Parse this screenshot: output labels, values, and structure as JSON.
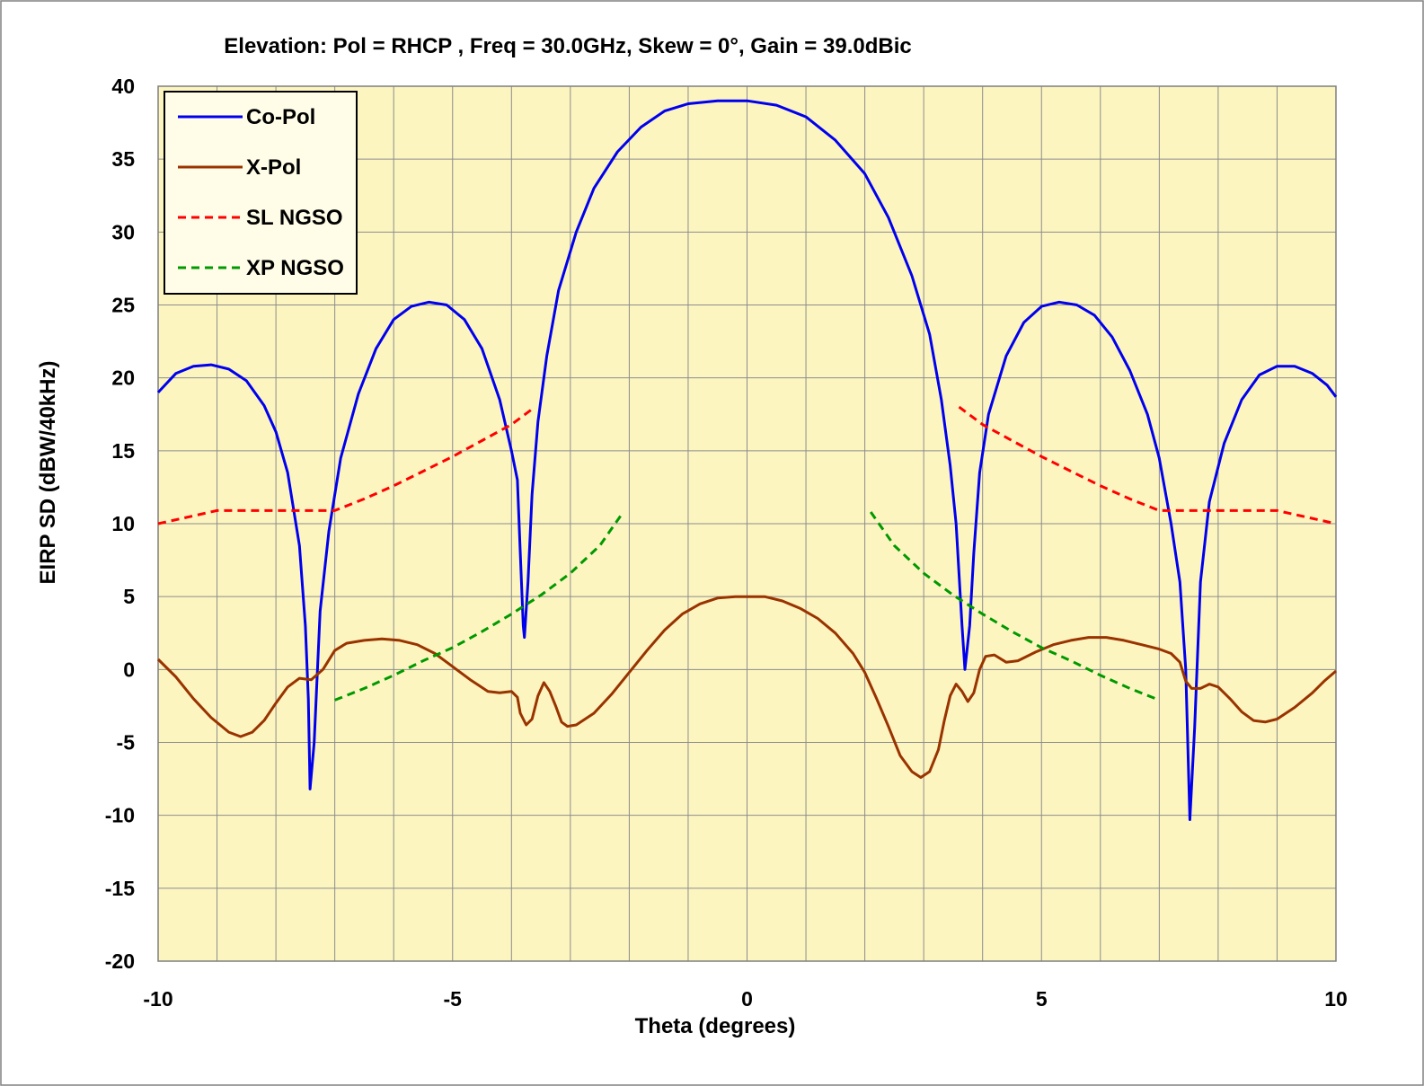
{
  "chart_data": {
    "type": "line",
    "title": "Elevation: Pol =  RHCP , Freq = 30.0GHz, Skew = 0°, Gain = 39.0dBic",
    "xlabel": "Theta (degrees)",
    "ylabel": "EIRP SD (dBW/40kHz)",
    "xlim": [
      -10,
      10
    ],
    "ylim": [
      -20,
      40
    ],
    "x_ticks": [
      -10,
      -5,
      0,
      5,
      10
    ],
    "x_tick_labels": [
      "-10",
      "-5",
      "0",
      "5",
      "10"
    ],
    "x_minor_step": 1,
    "y_ticks": [
      40,
      35,
      30,
      25,
      20,
      15,
      10,
      5,
      0,
      -5,
      -10,
      -15,
      -20
    ],
    "y_tick_labels": [
      "40",
      "35",
      "30",
      "25",
      "20",
      "15",
      "10",
      "5",
      "0",
      "-5",
      "-10",
      "-15",
      "-20"
    ],
    "grid": true,
    "legend_position": "top-left",
    "plot_background": "#fdf5c0",
    "series": [
      {
        "name": "Co-Pol",
        "color": "#0000ee",
        "style": "solid",
        "points": [
          [
            -10,
            19
          ],
          [
            -9.7,
            20.3
          ],
          [
            -9.4,
            20.8
          ],
          [
            -9.1,
            20.9
          ],
          [
            -8.8,
            20.6
          ],
          [
            -8.5,
            19.8
          ],
          [
            -8.2,
            18.1
          ],
          [
            -8.0,
            16.3
          ],
          [
            -7.8,
            13.5
          ],
          [
            -7.6,
            8.5
          ],
          [
            -7.5,
            3
          ],
          [
            -7.45,
            -2
          ],
          [
            -7.42,
            -8.2
          ],
          [
            -7.35,
            -5
          ],
          [
            -7.25,
            4
          ],
          [
            -7.1,
            9.5
          ],
          [
            -6.9,
            14.5
          ],
          [
            -6.6,
            18.9
          ],
          [
            -6.3,
            22
          ],
          [
            -6.0,
            24
          ],
          [
            -5.7,
            24.9
          ],
          [
            -5.4,
            25.2
          ],
          [
            -5.1,
            25
          ],
          [
            -4.8,
            24
          ],
          [
            -4.5,
            22
          ],
          [
            -4.2,
            18.5
          ],
          [
            -4.0,
            15
          ],
          [
            -3.9,
            13
          ],
          [
            -3.85,
            8
          ],
          [
            -3.8,
            3
          ],
          [
            -3.78,
            2.2
          ],
          [
            -3.72,
            6
          ],
          [
            -3.65,
            12
          ],
          [
            -3.55,
            17
          ],
          [
            -3.4,
            21.5
          ],
          [
            -3.2,
            26
          ],
          [
            -2.9,
            30
          ],
          [
            -2.6,
            33
          ],
          [
            -2.2,
            35.5
          ],
          [
            -1.8,
            37.2
          ],
          [
            -1.4,
            38.3
          ],
          [
            -1.0,
            38.8
          ],
          [
            -0.5,
            39
          ],
          [
            0,
            39
          ],
          [
            0.5,
            38.7
          ],
          [
            1.0,
            37.9
          ],
          [
            1.5,
            36.3
          ],
          [
            2.0,
            34
          ],
          [
            2.4,
            31
          ],
          [
            2.8,
            27
          ],
          [
            3.1,
            23
          ],
          [
            3.3,
            18.5
          ],
          [
            3.45,
            14
          ],
          [
            3.55,
            10
          ],
          [
            3.65,
            3
          ],
          [
            3.7,
            0
          ],
          [
            3.78,
            3
          ],
          [
            3.85,
            8
          ],
          [
            3.95,
            13.5
          ],
          [
            4.1,
            17.5
          ],
          [
            4.4,
            21.5
          ],
          [
            4.7,
            23.8
          ],
          [
            5.0,
            24.9
          ],
          [
            5.3,
            25.2
          ],
          [
            5.6,
            25
          ],
          [
            5.9,
            24.3
          ],
          [
            6.2,
            22.8
          ],
          [
            6.5,
            20.5
          ],
          [
            6.8,
            17.5
          ],
          [
            7.0,
            14.5
          ],
          [
            7.2,
            10
          ],
          [
            7.35,
            6
          ],
          [
            7.45,
            0
          ],
          [
            7.52,
            -10.3
          ],
          [
            7.6,
            -4
          ],
          [
            7.7,
            6
          ],
          [
            7.85,
            11.5
          ],
          [
            8.1,
            15.5
          ],
          [
            8.4,
            18.5
          ],
          [
            8.7,
            20.2
          ],
          [
            9.0,
            20.8
          ],
          [
            9.3,
            20.8
          ],
          [
            9.6,
            20.3
          ],
          [
            9.85,
            19.5
          ],
          [
            10,
            18.7
          ]
        ]
      },
      {
        "name": "X-Pol",
        "color": "#993300",
        "style": "solid",
        "points": [
          [
            -10,
            0.7
          ],
          [
            -9.7,
            -0.5
          ],
          [
            -9.4,
            -2
          ],
          [
            -9.1,
            -3.3
          ],
          [
            -8.8,
            -4.3
          ],
          [
            -8.6,
            -4.6
          ],
          [
            -8.4,
            -4.3
          ],
          [
            -8.2,
            -3.5
          ],
          [
            -8.0,
            -2.3
          ],
          [
            -7.8,
            -1.2
          ],
          [
            -7.6,
            -0.6
          ],
          [
            -7.4,
            -0.7
          ],
          [
            -7.2,
            0
          ],
          [
            -7.0,
            1.3
          ],
          [
            -6.8,
            1.8
          ],
          [
            -6.5,
            2
          ],
          [
            -6.2,
            2.1
          ],
          [
            -5.9,
            2
          ],
          [
            -5.6,
            1.7
          ],
          [
            -5.3,
            1.1
          ],
          [
            -5.0,
            0.2
          ],
          [
            -4.7,
            -0.7
          ],
          [
            -4.4,
            -1.5
          ],
          [
            -4.2,
            -1.6
          ],
          [
            -4.0,
            -1.5
          ],
          [
            -3.9,
            -1.9
          ],
          [
            -3.85,
            -3
          ],
          [
            -3.75,
            -3.8
          ],
          [
            -3.65,
            -3.4
          ],
          [
            -3.55,
            -1.8
          ],
          [
            -3.45,
            -0.9
          ],
          [
            -3.35,
            -1.5
          ],
          [
            -3.25,
            -2.5
          ],
          [
            -3.15,
            -3.6
          ],
          [
            -3.05,
            -3.9
          ],
          [
            -2.9,
            -3.8
          ],
          [
            -2.6,
            -3
          ],
          [
            -2.3,
            -1.7
          ],
          [
            -2.0,
            -0.2
          ],
          [
            -1.7,
            1.3
          ],
          [
            -1.4,
            2.7
          ],
          [
            -1.1,
            3.8
          ],
          [
            -0.8,
            4.5
          ],
          [
            -0.5,
            4.9
          ],
          [
            -0.2,
            5
          ],
          [
            0,
            5
          ],
          [
            0.3,
            5
          ],
          [
            0.6,
            4.7
          ],
          [
            0.9,
            4.2
          ],
          [
            1.2,
            3.5
          ],
          [
            1.5,
            2.5
          ],
          [
            1.8,
            1.1
          ],
          [
            2.0,
            -0.2
          ],
          [
            2.2,
            -2
          ],
          [
            2.4,
            -3.9
          ],
          [
            2.6,
            -5.9
          ],
          [
            2.8,
            -7
          ],
          [
            2.95,
            -7.4
          ],
          [
            3.1,
            -7
          ],
          [
            3.25,
            -5.5
          ],
          [
            3.35,
            -3.5
          ],
          [
            3.45,
            -1.8
          ],
          [
            3.55,
            -1
          ],
          [
            3.65,
            -1.5
          ],
          [
            3.75,
            -2.2
          ],
          [
            3.85,
            -1.6
          ],
          [
            3.95,
            0
          ],
          [
            4.05,
            0.9
          ],
          [
            4.2,
            1
          ],
          [
            4.4,
            0.5
          ],
          [
            4.6,
            0.6
          ],
          [
            4.9,
            1.2
          ],
          [
            5.2,
            1.7
          ],
          [
            5.5,
            2
          ],
          [
            5.8,
            2.2
          ],
          [
            6.1,
            2.2
          ],
          [
            6.4,
            2
          ],
          [
            6.7,
            1.7
          ],
          [
            7.0,
            1.4
          ],
          [
            7.2,
            1.1
          ],
          [
            7.35,
            0.5
          ],
          [
            7.45,
            -0.8
          ],
          [
            7.55,
            -1.3
          ],
          [
            7.7,
            -1.3
          ],
          [
            7.85,
            -1
          ],
          [
            8.0,
            -1.2
          ],
          [
            8.2,
            -2
          ],
          [
            8.4,
            -2.9
          ],
          [
            8.6,
            -3.5
          ],
          [
            8.8,
            -3.6
          ],
          [
            9.0,
            -3.4
          ],
          [
            9.3,
            -2.6
          ],
          [
            9.6,
            -1.6
          ],
          [
            9.8,
            -0.8
          ],
          [
            10,
            -0.1
          ]
        ]
      },
      {
        "name": "SL NGSO",
        "color": "#ff0000",
        "style": "dashed",
        "points": [
          [
            -10,
            10
          ],
          [
            -9,
            10.9
          ],
          [
            -8,
            10.9
          ],
          [
            -7,
            10.9
          ],
          [
            -6.5,
            11.7
          ],
          [
            -6,
            12.6
          ],
          [
            -5.5,
            13.6
          ],
          [
            -5,
            14.6
          ],
          [
            -4.5,
            15.7
          ],
          [
            -4,
            16.8
          ],
          [
            -3.6,
            18
          ],
          [
            3.6,
            18
          ],
          [
            4,
            16.8
          ],
          [
            4.5,
            15.7
          ],
          [
            5,
            14.6
          ],
          [
            5.5,
            13.6
          ],
          [
            6,
            12.6
          ],
          [
            6.5,
            11.7
          ],
          [
            7,
            10.9
          ],
          [
            8,
            10.9
          ],
          [
            9,
            10.9
          ],
          [
            10,
            10
          ]
        ]
      },
      {
        "name": "XP NGSO",
        "color": "#009900",
        "style": "dashed",
        "points": [
          [
            -7,
            -2.1
          ],
          [
            -6.5,
            -1.3
          ],
          [
            -6,
            -0.4
          ],
          [
            -5.5,
            0.6
          ],
          [
            -5,
            1.5
          ],
          [
            -4.5,
            2.6
          ],
          [
            -4,
            3.8
          ],
          [
            -3.5,
            5.1
          ],
          [
            -3,
            6.6
          ],
          [
            -2.5,
            8.5
          ],
          [
            -2.1,
            10.8
          ],
          [
            2.1,
            10.8
          ],
          [
            2.5,
            8.5
          ],
          [
            3,
            6.6
          ],
          [
            3.5,
            5.1
          ],
          [
            4,
            3.8
          ],
          [
            4.5,
            2.6
          ],
          [
            5,
            1.5
          ],
          [
            5.5,
            0.6
          ],
          [
            6,
            -0.4
          ],
          [
            6.5,
            -1.3
          ],
          [
            7,
            -2.1
          ]
        ]
      }
    ]
  }
}
